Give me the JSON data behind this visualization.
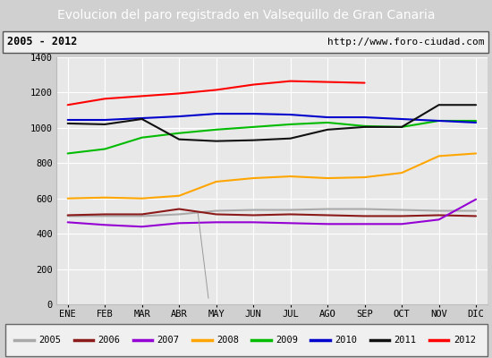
{
  "title": "Evolucion del paro registrado en Valsequillo de Gran Canaria",
  "subtitle_left": "2005 - 2012",
  "subtitle_right": "http://www.foro-ciudad.com",
  "months": [
    "ENE",
    "FEB",
    "MAR",
    "ABR",
    "MAY",
    "JUN",
    "JUL",
    "AGO",
    "SEP",
    "OCT",
    "NOV",
    "DIC"
  ],
  "ylim": [
    0,
    1400
  ],
  "yticks": [
    0,
    200,
    400,
    600,
    800,
    1000,
    1200,
    1400
  ],
  "series": {
    "2005": [
      500,
      500,
      500,
      510,
      530,
      535,
      535,
      540,
      540,
      535,
      530,
      530
    ],
    "2006": [
      505,
      510,
      510,
      540,
      510,
      505,
      510,
      505,
      500,
      500,
      505,
      500
    ],
    "2007": [
      465,
      450,
      440,
      460,
      465,
      465,
      460,
      455,
      455,
      455,
      480,
      595
    ],
    "2008": [
      600,
      605,
      600,
      615,
      695,
      715,
      725,
      715,
      720,
      745,
      840,
      855
    ],
    "2009": [
      855,
      880,
      945,
      970,
      990,
      1005,
      1020,
      1030,
      1010,
      1005,
      1040,
      1040
    ],
    "2010": [
      1045,
      1045,
      1055,
      1065,
      1080,
      1080,
      1075,
      1060,
      1060,
      1050,
      1040,
      1030
    ],
    "2011": [
      1025,
      1020,
      1050,
      935,
      925,
      930,
      940,
      990,
      1005,
      1005,
      1130,
      1130
    ],
    "2012": [
      1130,
      1165,
      1180,
      1195,
      1215,
      1245,
      1265,
      1260,
      1255,
      null,
      null,
      null
    ]
  },
  "colors": {
    "2005": "#aaaaaa",
    "2006": "#8B1a1a",
    "2007": "#9400D3",
    "2008": "#FFA500",
    "2009": "#00BB00",
    "2010": "#0000CC",
    "2011": "#111111",
    "2012": "#FF0000"
  },
  "title_bg": "#4080b0",
  "title_color": "#ffffff",
  "plot_bg": "#e8e8e8",
  "subtitle_bg": "#f0f0f0",
  "grid_color": "#ffffff",
  "legend_bg": "#f0f0f0",
  "outer_bg": "#d0d0d0"
}
